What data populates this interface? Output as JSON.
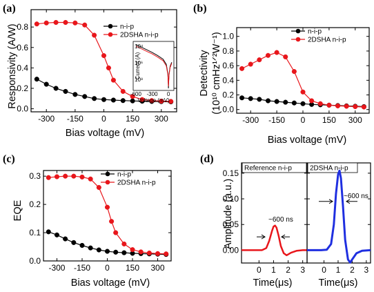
{
  "figure": {
    "panels": [
      "(a)",
      "(b)",
      "(c)",
      "(d)"
    ],
    "series_names": [
      "n-i-p",
      "2DSHA n-i-p"
    ],
    "colors": {
      "nip": "#000000",
      "sha": "#e8161b",
      "blue": "#1f2fe0"
    }
  },
  "chart_data": [
    {
      "panel": "(a)",
      "type": "line",
      "xlabel": "Bias voltage (mV)",
      "ylabel": "Responsivity (A/W)",
      "xlim": [
        -380,
        380
      ],
      "ylim": [
        -0.03,
        0.97
      ],
      "xticks": [
        -300,
        -150,
        0,
        150,
        300
      ],
      "yticks": [
        0.0,
        0.2,
        0.4,
        0.6,
        0.8
      ],
      "ytick_labels": [
        "0.0",
        "0.2",
        "0.4",
        "0.6",
        "0.8"
      ],
      "legend": "top-right",
      "series": [
        {
          "name": "n-i-p",
          "color": "#000000",
          "x": [
            -350,
            -300,
            -250,
            -200,
            -150,
            -100,
            -50,
            0,
            50,
            100,
            150,
            200,
            250,
            300,
            350
          ],
          "y": [
            0.29,
            0.24,
            0.2,
            0.17,
            0.14,
            0.12,
            0.1,
            0.09,
            0.085,
            0.08,
            0.077,
            0.074,
            0.072,
            0.07,
            0.068
          ]
        },
        {
          "name": "2DSHA n-i-p",
          "color": "#e8161b",
          "x": [
            -350,
            -300,
            -250,
            -200,
            -150,
            -100,
            -50,
            0,
            25,
            50,
            100,
            150,
            200,
            250,
            300,
            350
          ],
          "y": [
            0.83,
            0.84,
            0.845,
            0.845,
            0.84,
            0.82,
            0.72,
            0.52,
            0.4,
            0.28,
            0.17,
            0.12,
            0.09,
            0.08,
            0.075,
            0.072
          ]
        }
      ],
      "inset": {
        "xlabel": "Voltage (mV)",
        "ylabel": "Current (A)",
        "xlim": [
          -650,
          100
        ],
        "xticks": [
          -600,
          -300,
          0
        ],
        "ytick_labels": [
          "10⁴",
          "10⁶",
          "10⁸"
        ],
        "curves": [
          {
            "x": [
              -600,
              -500,
              -400,
              -300,
              -200,
              -100,
              -40,
              -10,
              0,
              10,
              30,
              60
            ],
            "y": [
              -4.2,
              -4.45,
              -4.7,
              -4.95,
              -5.25,
              -5.6,
              -6.1,
              -7.0,
              -8.4,
              -7.1,
              -6.3,
              -5.9
            ],
            "color": "#000000"
          },
          {
            "x": [
              -600,
              -500,
              -400,
              -300,
              -200,
              -100,
              -40,
              -10,
              0,
              10,
              30,
              60
            ],
            "y": [
              -4.35,
              -4.6,
              -4.85,
              -5.1,
              -5.4,
              -5.75,
              -6.25,
              -7.1,
              -8.2,
              -7.2,
              -6.4,
              -6.0
            ],
            "color": "#e8161b"
          }
        ],
        "ylim": [
          -8.6,
          -3.9
        ]
      }
    },
    {
      "panel": "(b)",
      "type": "line",
      "xlabel": "Bias voltage (mV)",
      "ylabel_line1": "Detectivity",
      "ylabel_line2": "(10¹⁰ cmHz¹ᐟ²W⁻¹)",
      "xlim": [
        -380,
        380
      ],
      "ylim": [
        -0.05,
        1.12
      ],
      "xticks": [
        -300,
        -150,
        0,
        150,
        300
      ],
      "yticks": [
        0.0,
        0.2,
        0.4,
        0.6,
        0.8,
        1.0
      ],
      "ytick_labels": [
        "0.0",
        "0.2",
        "0.4",
        "0.6",
        "0.8",
        "1.0"
      ],
      "legend": "top-right",
      "series": [
        {
          "name": "n-i-p",
          "color": "#000000",
          "x": [
            -350,
            -300,
            -250,
            -200,
            -150,
            -100,
            -50,
            0,
            50,
            100,
            150,
            200,
            250,
            300,
            350
          ],
          "y": [
            0.16,
            0.15,
            0.14,
            0.12,
            0.11,
            0.1,
            0.09,
            0.08,
            0.07,
            0.065,
            0.06,
            0.055,
            0.05,
            0.045,
            0.04
          ]
        },
        {
          "name": "2DSHA n-i-p",
          "color": "#e8161b",
          "x": [
            -350,
            -300,
            -250,
            -200,
            -150,
            -100,
            -50,
            0,
            50,
            100,
            150,
            200,
            250,
            300,
            350
          ],
          "y": [
            0.56,
            0.62,
            0.68,
            0.74,
            0.78,
            0.72,
            0.52,
            0.24,
            0.12,
            0.08,
            0.06,
            0.05,
            0.045,
            0.04,
            0.035
          ]
        }
      ]
    },
    {
      "panel": "(c)",
      "type": "line",
      "xlabel": "Bias voltage (mV)",
      "ylabel": "EQE",
      "xlim": [
        -380,
        380
      ],
      "ylim": [
        0.0,
        0.32
      ],
      "xticks": [
        -300,
        -150,
        0,
        150,
        300
      ],
      "yticks": [
        0.0,
        0.1,
        0.2,
        0.3
      ],
      "ytick_labels": [
        "0.0",
        "0.1",
        "0.2",
        "0.3"
      ],
      "legend": "top-right",
      "series": [
        {
          "name": "n-i-p",
          "color": "#000000",
          "x": [
            -350,
            -300,
            -250,
            -200,
            -150,
            -100,
            -50,
            0,
            50,
            100,
            150,
            200,
            250,
            300,
            350
          ],
          "y": [
            0.103,
            0.092,
            0.078,
            0.065,
            0.055,
            0.046,
            0.039,
            0.034,
            0.031,
            0.029,
            0.027,
            0.026,
            0.025,
            0.024,
            0.023
          ]
        },
        {
          "name": "2DSHA n-i-p",
          "color": "#e8161b",
          "x": [
            -350,
            -300,
            -250,
            -200,
            -150,
            -100,
            -50,
            0,
            25,
            50,
            100,
            150,
            200,
            250,
            300,
            350
          ],
          "y": [
            0.295,
            0.298,
            0.3,
            0.3,
            0.297,
            0.29,
            0.26,
            0.19,
            0.14,
            0.1,
            0.06,
            0.04,
            0.032,
            0.028,
            0.026,
            0.025
          ]
        }
      ]
    },
    {
      "panel": "(d)",
      "type": "line",
      "ylabel": "Amplitude (a.u.)",
      "ylim": [
        -0.025,
        0.17
      ],
      "yticks": [
        0.0,
        0.05,
        0.1,
        0.15
      ],
      "ytick_labels": [
        "0.00",
        "0.05",
        "0.10",
        "0.15"
      ],
      "subplots": [
        {
          "title": "Reference n-i-p",
          "xlabel": "Time(μs)",
          "xlim": [
            -1.2,
            3.3
          ],
          "xticks": [
            0,
            1,
            2,
            3
          ],
          "annotation": "~600 ns",
          "series": {
            "color": "#e8161b",
            "x": [
              -1.2,
              -0.6,
              -0.2,
              0.2,
              0.5,
              0.7,
              0.9,
              1.0,
              1.1,
              1.2,
              1.35,
              1.5,
              1.7,
              1.9,
              2.2,
              2.6,
              3.0,
              3.3
            ],
            "y": [
              0.0,
              0.0,
              0.0,
              0.0,
              0.004,
              0.018,
              0.038,
              0.046,
              0.048,
              0.044,
              0.028,
              0.008,
              -0.006,
              -0.01,
              -0.005,
              -0.001,
              0.0,
              0.0
            ]
          }
        },
        {
          "title": "2DSHA n-i-p",
          "xlabel": "Time(μs)",
          "xlim": [
            -1.2,
            3.3
          ],
          "xticks": [
            0,
            1,
            2,
            3
          ],
          "annotation": "~600 ns",
          "series": {
            "color": "#1f2fe0",
            "x": [
              -1.2,
              -0.6,
              -0.2,
              0.2,
              0.5,
              0.7,
              0.85,
              1.0,
              1.1,
              1.2,
              1.35,
              1.5,
              1.7,
              1.85,
              2.0,
              2.3,
              2.7,
              3.3
            ],
            "y": [
              0.0,
              0.0,
              0.0,
              0.001,
              0.012,
              0.05,
              0.11,
              0.148,
              0.155,
              0.14,
              0.085,
              0.02,
              -0.018,
              -0.024,
              -0.018,
              -0.006,
              -0.001,
              0.0
            ]
          }
        }
      ]
    }
  ]
}
